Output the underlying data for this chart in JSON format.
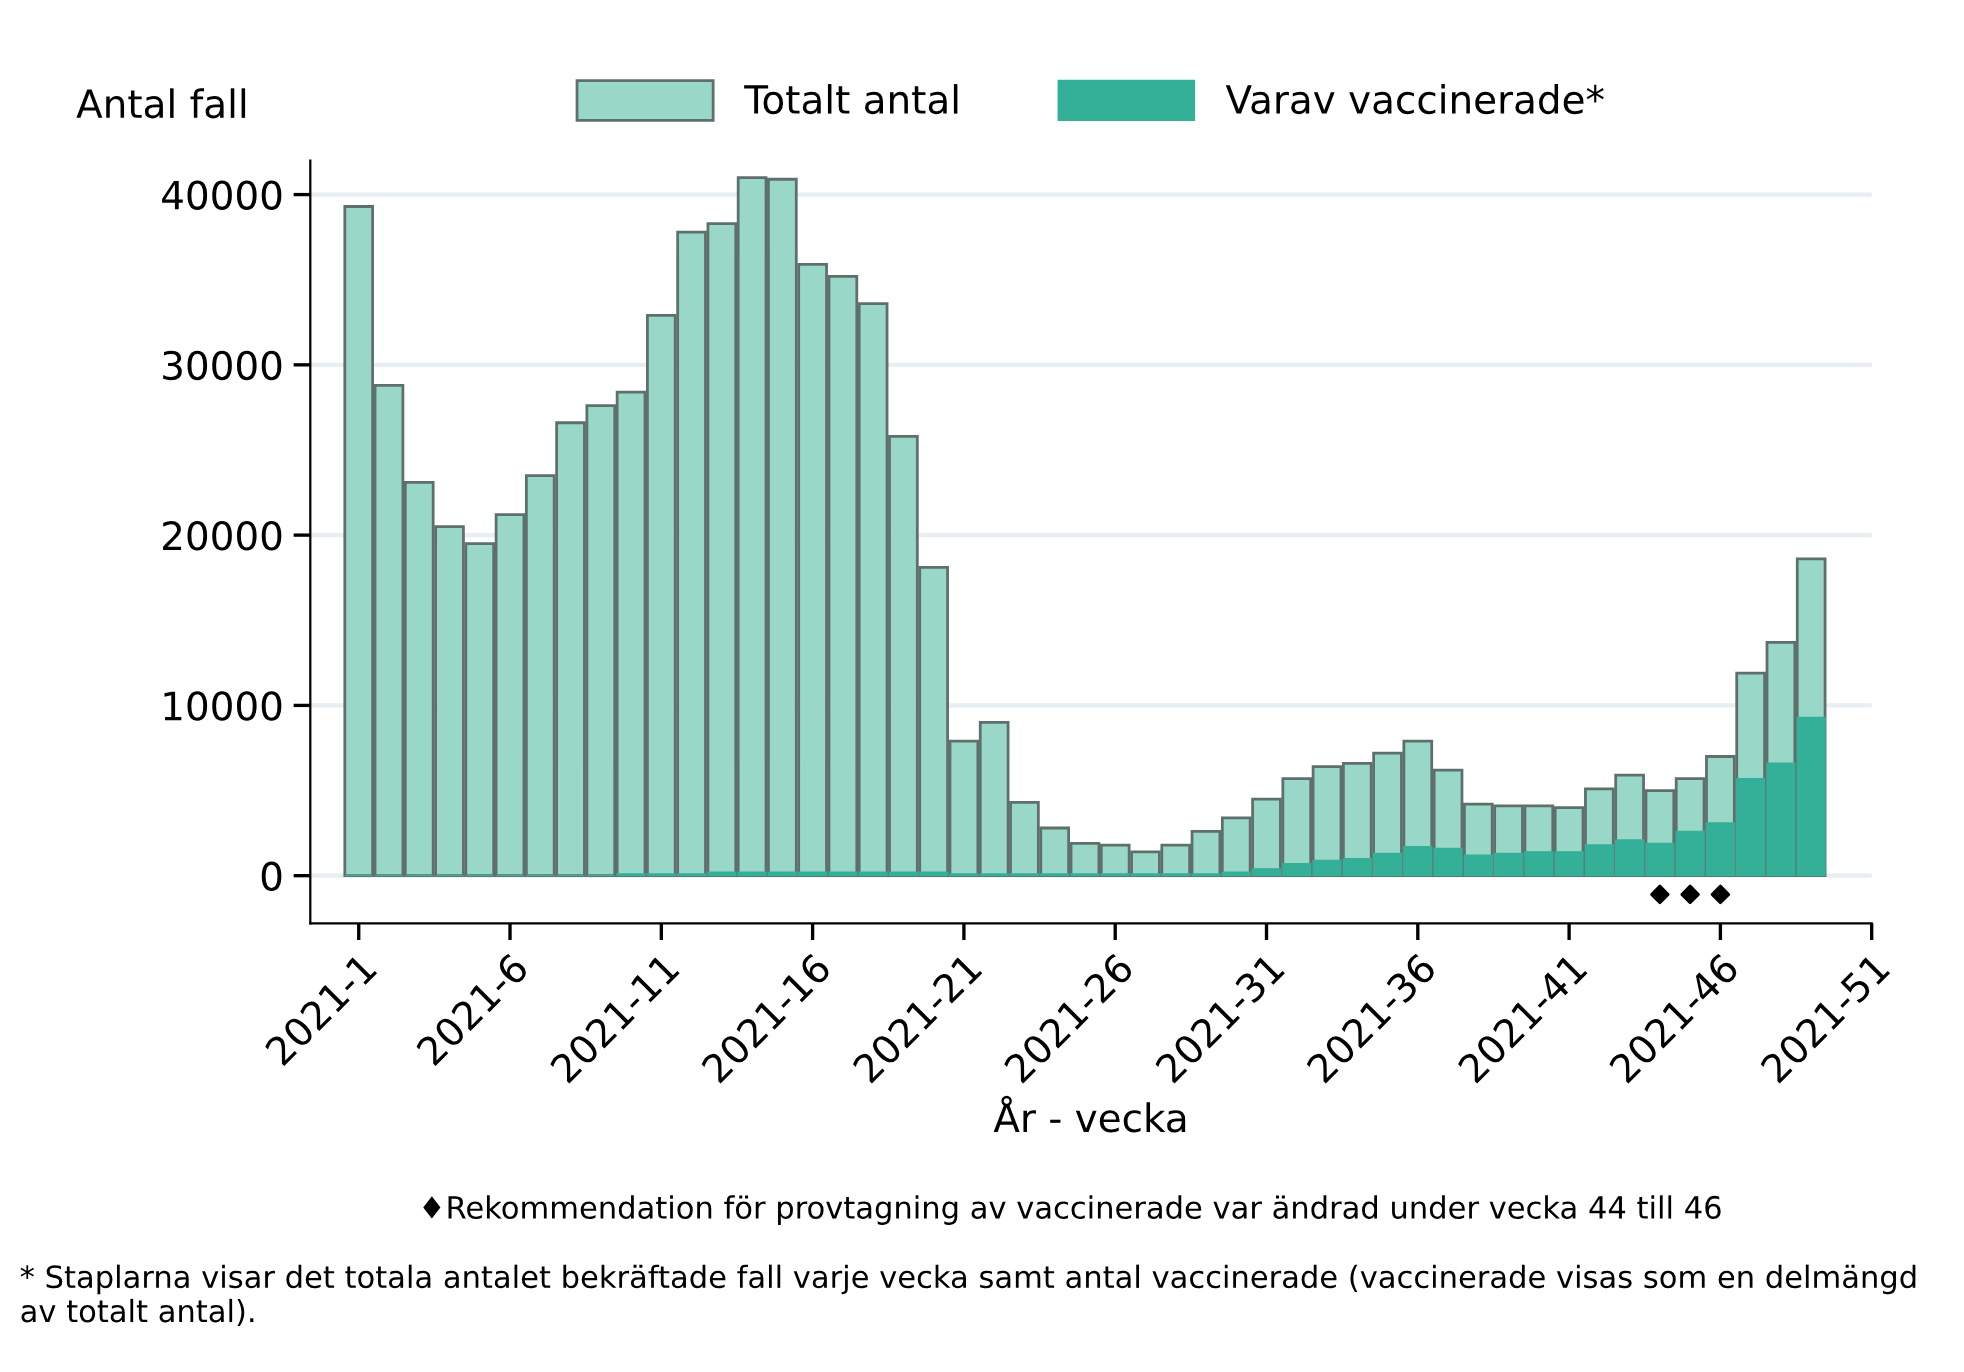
{
  "chart_data": {
    "type": "bar",
    "ylabel": "Antal fall",
    "xlabel": "År - vecka",
    "categories": [
      "2021-1",
      null,
      null,
      null,
      null,
      "2021-6",
      null,
      null,
      null,
      null,
      "2021-11",
      null,
      null,
      null,
      null,
      "2021-16",
      null,
      null,
      null,
      null,
      "2021-21",
      null,
      null,
      null,
      null,
      "2021-26",
      null,
      null,
      null,
      null,
      "2021-31",
      null,
      null,
      null,
      null,
      "2021-36",
      null,
      null,
      null,
      null,
      "2021-41",
      null,
      null,
      null,
      null,
      "2021-46",
      null,
      null,
      null,
      null,
      "2021-51"
    ],
    "series": [
      {
        "name": "Totalt antal",
        "color": "#99d8c9",
        "values": [
          39300,
          28800,
          23100,
          20500,
          19500,
          21200,
          23500,
          26600,
          27600,
          28400,
          32900,
          37800,
          38300,
          41000,
          40900,
          35900,
          35200,
          33600,
          25800,
          18100,
          7900,
          9000,
          4300,
          2800,
          1900,
          1800,
          1400,
          1800,
          2600,
          3400,
          4500,
          5700,
          6400,
          6600,
          7200,
          7900,
          6200,
          4200,
          4100,
          4100,
          4000,
          5100,
          5900,
          5000,
          5700,
          7000,
          11900,
          13700,
          18600,
          null,
          null
        ]
      },
      {
        "name": "Varav vaccinerade*",
        "color": "#33b097",
        "values": [
          0,
          0,
          0,
          0,
          0,
          0,
          0,
          0,
          0,
          100,
          100,
          100,
          200,
          200,
          200,
          200,
          200,
          200,
          200,
          200,
          100,
          100,
          100,
          100,
          100,
          100,
          100,
          100,
          100,
          200,
          400,
          700,
          900,
          1000,
          1300,
          1700,
          1600,
          1200,
          1300,
          1400,
          1400,
          1800,
          2100,
          1900,
          2600,
          3100,
          5700,
          6600,
          9300,
          null,
          null
        ]
      },
      {
        "type": "scatter",
        "color": "#000000",
        "marker": "diamond",
        "values": [
          null,
          null,
          null,
          null,
          null,
          null,
          null,
          null,
          null,
          null,
          null,
          null,
          null,
          null,
          null,
          null,
          null,
          null,
          null,
          null,
          null,
          null,
          null,
          null,
          null,
          null,
          null,
          null,
          null,
          null,
          null,
          null,
          null,
          null,
          null,
          null,
          null,
          null,
          null,
          null,
          null,
          null,
          null,
          -1100,
          -1100,
          -1100,
          null,
          null,
          null,
          null,
          null
        ]
      }
    ],
    "ylim": [
      -2800,
      42000
    ],
    "yticks": [
      0,
      10000,
      20000,
      30000,
      40000
    ],
    "grid": "y",
    "legend": "top",
    "annotations": [
      "♦Rekommendation för provtagning av vaccinerade var ändrad under vecka 44 till 46",
      "* Staplarna visar det totala antalet bekräftade fall varje vecka samt antal vaccinerade (vaccinerade visas som en delmängd av totalt antal)."
    ]
  }
}
